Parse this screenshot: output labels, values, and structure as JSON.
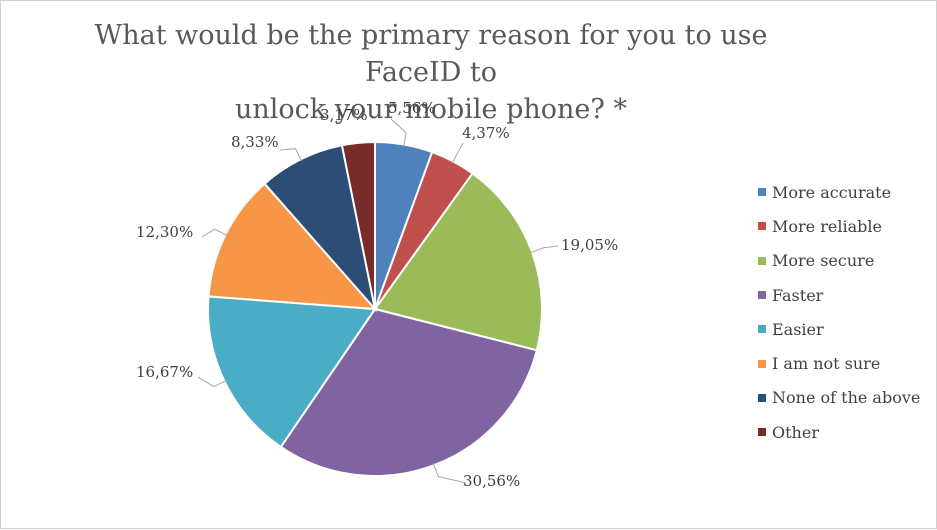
{
  "chart_data": {
    "type": "pie",
    "title_lines": [
      "What would be the primary reason for you to use FaceID to",
      "unlock your mobile phone? *"
    ],
    "categories": [
      "More accurate",
      "More reliable",
      "More secure",
      "Faster",
      "Easier",
      "I am not sure",
      "None of the above",
      "Other"
    ],
    "values": [
      5.56,
      4.37,
      19.05,
      30.56,
      16.67,
      12.3,
      8.33,
      3.17
    ],
    "value_labels": [
      "5,56%",
      "4,37%",
      "19,05%",
      "30,56%",
      "16,67%",
      "12,30%",
      "8,33%",
      "3,17%"
    ],
    "colors": [
      "#4f81bd",
      "#c0504d",
      "#9bbb59",
      "#8064a2",
      "#4bacc6",
      "#f79646",
      "#2c4d75",
      "#772c2a"
    ],
    "legend_position": "right",
    "start_angle_deg": 0,
    "direction": "clockwise"
  }
}
